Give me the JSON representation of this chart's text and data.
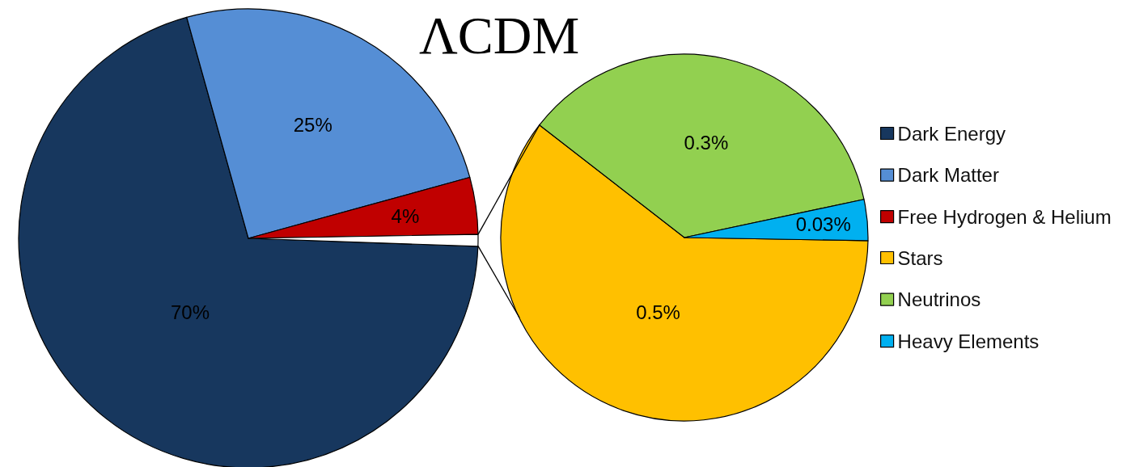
{
  "chart_data": [
    {
      "type": "pie",
      "title": "ΛCDM",
      "categories": [
        "Dark Energy",
        "Dark Matter",
        "Free Hydrogen & Helium",
        null
      ],
      "values": [
        70,
        25,
        4,
        0.83
      ],
      "colors": [
        "#17375e",
        "#558ed5",
        "#c00000",
        "#ffffff"
      ],
      "value_labels": [
        "70%",
        "25%",
        "4%",
        null
      ],
      "legend": "right"
    },
    {
      "type": "pie",
      "categories": [
        "Stars",
        "Neutrinos",
        "Heavy Elements"
      ],
      "values": [
        0.5,
        0.3,
        0.03
      ],
      "colors": [
        "#ffc000",
        "#92d050",
        "#00b0f0"
      ],
      "value_labels": [
        "0.5%",
        "0.3%",
        "0.03%"
      ],
      "legend": "right"
    }
  ]
}
